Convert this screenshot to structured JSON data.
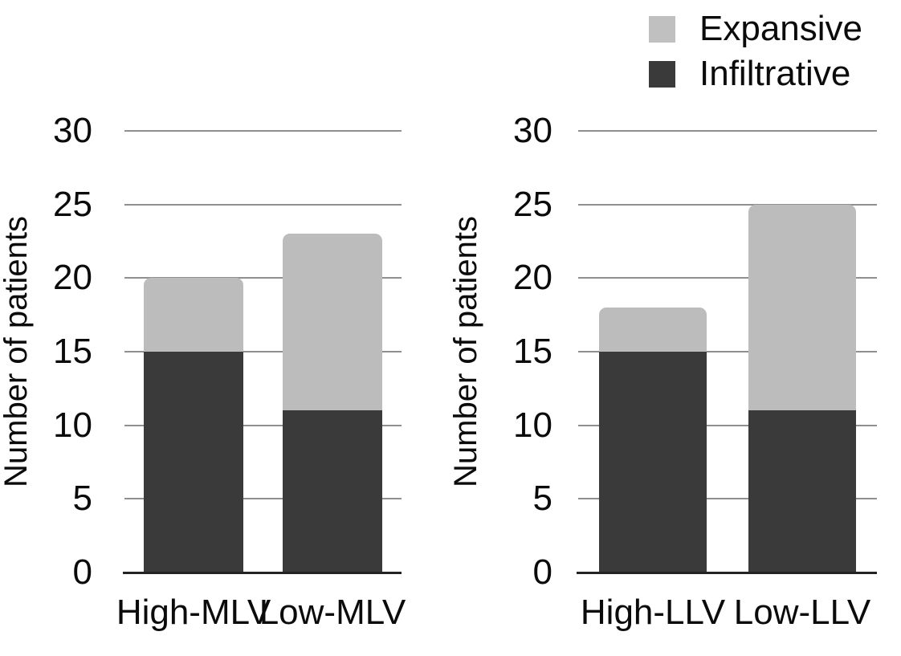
{
  "figure": {
    "background": "#ffffff",
    "text_color": "#0b0b0b",
    "gridline_color": "#8f8f8f",
    "axis_line_color": "#232323"
  },
  "legend": {
    "items": [
      {
        "label": "Expansive",
        "color": "#c0c0c0"
      },
      {
        "label": "Infiltrative",
        "color": "#3a3a3a"
      }
    ]
  },
  "chart_data": [
    {
      "type": "bar",
      "stacked": true,
      "title": "",
      "xlabel": "",
      "ylabel": "Number of patients",
      "categories": [
        "High-MLV",
        "Low-MLV"
      ],
      "series": [
        {
          "name": "Infiltrative",
          "color": "#3a3a3a",
          "values": [
            15,
            11
          ]
        },
        {
          "name": "Expansive",
          "color": "#bcbcbc",
          "values": [
            5,
            12
          ]
        }
      ],
      "stack_totals": [
        20,
        23
      ],
      "ylim": [
        0,
        30
      ],
      "yticks": [
        0,
        5,
        10,
        15,
        20,
        25,
        30
      ],
      "grid": true,
      "legend_position": "top-right"
    },
    {
      "type": "bar",
      "stacked": true,
      "title": "",
      "xlabel": "",
      "ylabel": "Number of patients",
      "categories": [
        "High-LLV",
        "Low-LLV"
      ],
      "series": [
        {
          "name": "Infiltrative",
          "color": "#3a3a3a",
          "values": [
            15,
            11
          ]
        },
        {
          "name": "Expansive",
          "color": "#bcbcbc",
          "values": [
            3,
            14
          ]
        }
      ],
      "stack_totals": [
        18,
        25
      ],
      "ylim": [
        0,
        30
      ],
      "yticks": [
        0,
        5,
        10,
        15,
        20,
        25,
        30
      ],
      "grid": true,
      "legend_position": "none"
    }
  ]
}
